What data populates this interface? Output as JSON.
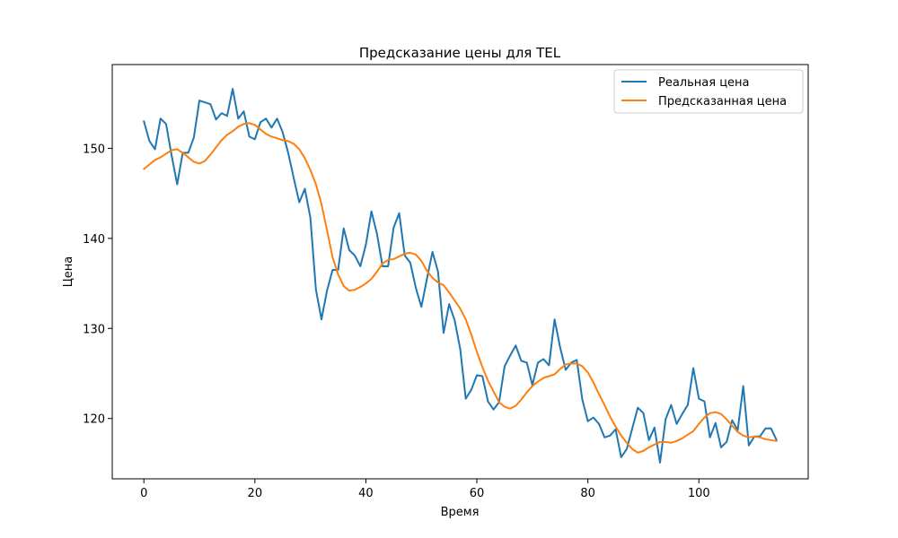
{
  "chart_data": {
    "type": "line",
    "title": "Предсказание цены для TEL",
    "xlabel": "Время",
    "ylabel": "Цена",
    "xlim": [
      -5.7,
      119.7
    ],
    "ylim": [
      113.3,
      159.3
    ],
    "xticks": [
      0,
      20,
      40,
      60,
      80,
      100
    ],
    "yticks": [
      120,
      130,
      140,
      150
    ],
    "legend_position": "top-right",
    "grid": false,
    "series": [
      {
        "name": "Реальная цена",
        "color": "#1f77b4",
        "values": [
          153.0,
          150.8,
          149.9,
          153.3,
          152.7,
          149.2,
          146.0,
          149.5,
          149.5,
          151.2,
          155.3,
          155.1,
          154.9,
          153.2,
          153.9,
          153.6,
          156.6,
          153.3,
          154.1,
          151.3,
          151.0,
          152.9,
          153.3,
          152.3,
          153.3,
          151.8,
          149.5,
          146.7,
          144.0,
          145.5,
          142.3,
          134.3,
          131.0,
          134.2,
          136.5,
          136.5,
          141.1,
          138.7,
          138.1,
          136.9,
          139.3,
          143.0,
          140.5,
          136.9,
          136.9,
          141.2,
          142.8,
          138.1,
          137.3,
          134.5,
          132.4,
          135.5,
          138.5,
          136.3,
          129.5,
          132.7,
          130.9,
          127.7,
          122.2,
          123.2,
          124.8,
          124.7,
          121.9,
          121.0,
          121.8,
          125.8,
          127.0,
          128.1,
          126.4,
          126.2,
          123.7,
          126.2,
          126.6,
          125.9,
          131.0,
          127.9,
          125.4,
          126.2,
          126.5,
          122.1,
          119.7,
          120.1,
          119.4,
          117.9,
          118.1,
          118.8,
          115.7,
          116.6,
          118.9,
          121.2,
          120.6,
          117.6,
          119.0,
          115.1,
          119.9,
          121.5,
          119.4,
          120.5,
          121.5,
          125.6,
          122.2,
          121.9,
          117.9,
          119.5,
          116.8,
          117.4,
          119.8,
          118.7,
          123.6,
          117.0,
          118.0,
          118.0,
          118.9,
          118.9,
          117.6
        ]
      },
      {
        "name": "Предсказанная цена",
        "color": "#ff7f0e",
        "values": [
          147.7,
          148.2,
          148.7,
          149.0,
          149.4,
          149.8,
          149.9,
          149.5,
          149.0,
          148.5,
          148.3,
          148.6,
          149.3,
          150.1,
          150.9,
          151.5,
          151.9,
          152.4,
          152.7,
          152.8,
          152.6,
          152.1,
          151.6,
          151.3,
          151.1,
          150.9,
          150.8,
          150.5,
          149.9,
          148.9,
          147.6,
          146.0,
          143.8,
          140.9,
          137.9,
          136.0,
          134.7,
          134.2,
          134.3,
          134.6,
          135.0,
          135.5,
          136.3,
          137.2,
          137.6,
          137.7,
          138.0,
          138.3,
          138.4,
          138.2,
          137.5,
          136.4,
          135.6,
          135.1,
          134.8,
          134.0,
          133.1,
          132.2,
          131.0,
          129.3,
          127.4,
          125.7,
          124.2,
          123.0,
          121.8,
          121.3,
          121.1,
          121.4,
          122.1,
          122.9,
          123.6,
          124.1,
          124.5,
          124.7,
          124.9,
          125.5,
          126.0,
          126.1,
          126.1,
          125.8,
          125.1,
          124.0,
          122.7,
          121.5,
          120.2,
          119.1,
          118.1,
          117.3,
          116.6,
          116.2,
          116.4,
          116.8,
          117.1,
          117.4,
          117.4,
          117.3,
          117.5,
          117.8,
          118.2,
          118.6,
          119.4,
          120.1,
          120.6,
          120.7,
          120.5,
          119.9,
          119.2,
          118.5,
          118.1,
          117.9,
          118.0,
          117.9,
          117.7,
          117.6,
          117.5
        ]
      }
    ]
  }
}
